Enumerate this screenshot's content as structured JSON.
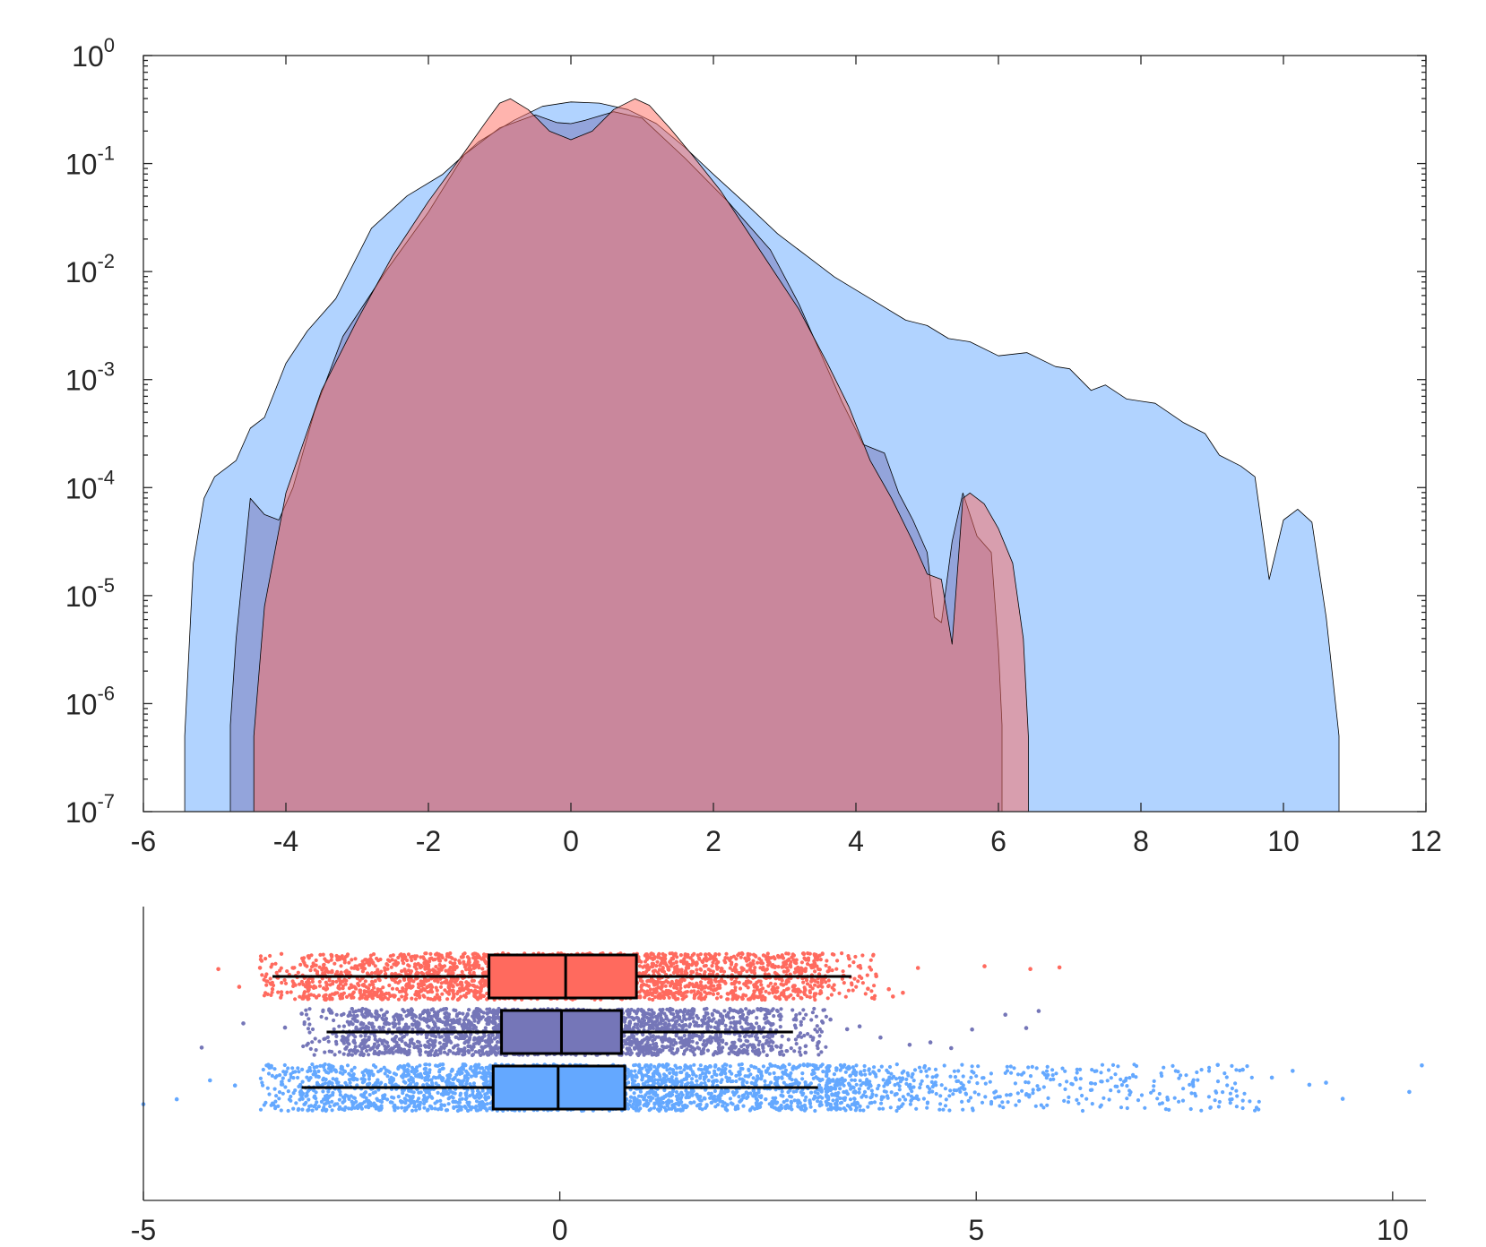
{
  "chart_data": [
    {
      "type": "area",
      "scale_y": "log",
      "xlim": [
        -6,
        12
      ],
      "ylim_exponents": [
        -7,
        0
      ],
      "x_ticks": [
        "-6",
        "-4",
        "-2",
        "0",
        "2",
        "4",
        "6",
        "8",
        "10",
        "12"
      ],
      "y_tick_base": "10",
      "y_tick_exponents": [
        "-7",
        "-6",
        "-5",
        "-4",
        "-3",
        "-2",
        "-1",
        "0"
      ],
      "grid": false,
      "title": "",
      "xlabel": "",
      "ylabel": "",
      "series": [
        {
          "color": "#64a8ff",
          "points": [
            [
              -5.42,
              -6.3
            ],
            [
              -5.3,
              -4.7
            ],
            [
              -5.15,
              -4.1
            ],
            [
              -5.0,
              -3.9
            ],
            [
              -4.7,
              -3.75
            ],
            [
              -4.5,
              -3.45
            ],
            [
              -4.3,
              -3.35
            ],
            [
              -4.0,
              -2.85
            ],
            [
              -3.7,
              -2.55
            ],
            [
              -3.3,
              -2.25
            ],
            [
              -2.8,
              -1.6
            ],
            [
              -2.3,
              -1.3
            ],
            [
              -1.8,
              -1.1
            ],
            [
              -1.3,
              -0.8
            ],
            [
              -0.8,
              -0.6
            ],
            [
              -0.4,
              -0.47
            ],
            [
              0.0,
              -0.43
            ],
            [
              0.4,
              -0.44
            ],
            [
              0.8,
              -0.5
            ],
            [
              1.2,
              -0.63
            ],
            [
              1.6,
              -0.85
            ],
            [
              2.0,
              -1.1
            ],
            [
              2.5,
              -1.4
            ],
            [
              2.9,
              -1.65
            ],
            [
              3.3,
              -1.85
            ],
            [
              3.7,
              -2.05
            ],
            [
              4.2,
              -2.25
            ],
            [
              4.7,
              -2.45
            ],
            [
              5.0,
              -2.5
            ],
            [
              5.3,
              -2.62
            ],
            [
              5.6,
              -2.65
            ],
            [
              6.0,
              -2.78
            ],
            [
              6.4,
              -2.75
            ],
            [
              6.8,
              -2.88
            ],
            [
              7.0,
              -2.9
            ],
            [
              7.3,
              -3.1
            ],
            [
              7.5,
              -3.05
            ],
            [
              7.8,
              -3.18
            ],
            [
              8.2,
              -3.22
            ],
            [
              8.6,
              -3.4
            ],
            [
              8.9,
              -3.5
            ],
            [
              9.1,
              -3.7
            ],
            [
              9.4,
              -3.8
            ],
            [
              9.6,
              -3.9
            ],
            [
              9.8,
              -4.85
            ],
            [
              10.0,
              -4.3
            ],
            [
              10.2,
              -4.2
            ],
            [
              10.4,
              -4.32
            ],
            [
              10.6,
              -5.2
            ],
            [
              10.78,
              -6.3
            ]
          ]
        },
        {
          "color": "#7576b8",
          "points": [
            [
              -4.78,
              -6.2
            ],
            [
              -4.7,
              -5.4
            ],
            [
              -4.5,
              -4.1
            ],
            [
              -4.3,
              -4.25
            ],
            [
              -4.1,
              -4.3
            ],
            [
              -3.9,
              -4.0
            ],
            [
              -3.6,
              -3.3
            ],
            [
              -3.2,
              -2.6
            ],
            [
              -2.6,
              -2.0
            ],
            [
              -2.0,
              -1.45
            ],
            [
              -1.5,
              -0.92
            ],
            [
              -1.0,
              -0.67
            ],
            [
              -0.5,
              -0.55
            ],
            [
              -0.2,
              -0.62
            ],
            [
              0.0,
              -0.63
            ],
            [
              0.2,
              -0.6
            ],
            [
              0.6,
              -0.52
            ],
            [
              1.0,
              -0.58
            ],
            [
              1.6,
              -0.95
            ],
            [
              2.2,
              -1.35
            ],
            [
              2.8,
              -1.8
            ],
            [
              3.2,
              -2.3
            ],
            [
              3.5,
              -2.75
            ],
            [
              3.8,
              -3.2
            ],
            [
              4.1,
              -3.6
            ],
            [
              4.4,
              -3.68
            ],
            [
              4.6,
              -4.05
            ],
            [
              4.8,
              -4.3
            ],
            [
              5.0,
              -4.6
            ],
            [
              5.1,
              -5.2
            ],
            [
              5.2,
              -5.25
            ],
            [
              5.35,
              -4.5
            ],
            [
              5.5,
              -4.05
            ],
            [
              5.7,
              -4.45
            ],
            [
              5.9,
              -4.6
            ],
            [
              6.0,
              -5.5
            ],
            [
              6.05,
              -6.2
            ]
          ]
        },
        {
          "color": "#ff6a5e",
          "points": [
            [
              -4.45,
              -6.3
            ],
            [
              -4.3,
              -5.1
            ],
            [
              -4.0,
              -4.05
            ],
            [
              -3.5,
              -3.1
            ],
            [
              -3.0,
              -2.45
            ],
            [
              -2.5,
              -1.85
            ],
            [
              -2.0,
              -1.35
            ],
            [
              -1.5,
              -0.9
            ],
            [
              -1.2,
              -0.62
            ],
            [
              -1.0,
              -0.44
            ],
            [
              -0.85,
              -0.4
            ],
            [
              -0.6,
              -0.5
            ],
            [
              -0.3,
              -0.7
            ],
            [
              0.0,
              -0.78
            ],
            [
              0.3,
              -0.7
            ],
            [
              0.6,
              -0.5
            ],
            [
              0.9,
              -0.4
            ],
            [
              1.1,
              -0.46
            ],
            [
              1.4,
              -0.68
            ],
            [
              1.7,
              -0.92
            ],
            [
              2.1,
              -1.25
            ],
            [
              2.6,
              -1.75
            ],
            [
              3.2,
              -2.35
            ],
            [
              3.6,
              -2.85
            ],
            [
              3.9,
              -3.25
            ],
            [
              4.2,
              -3.75
            ],
            [
              4.5,
              -4.1
            ],
            [
              4.8,
              -4.5
            ],
            [
              5.0,
              -4.8
            ],
            [
              5.2,
              -4.85
            ],
            [
              5.35,
              -5.45
            ],
            [
              5.5,
              -4.1
            ],
            [
              5.6,
              -4.05
            ],
            [
              5.8,
              -4.15
            ],
            [
              6.0,
              -4.38
            ],
            [
              6.2,
              -4.7
            ],
            [
              6.35,
              -5.4
            ],
            [
              6.42,
              -6.3
            ]
          ]
        }
      ]
    },
    {
      "type": "scatter",
      "subtype": "boxplot-with-jitter",
      "xlim": [
        -5,
        10.4
      ],
      "x_ticks": [
        "-5",
        "0",
        "5",
        "10"
      ],
      "grid": false,
      "title": "",
      "xlabel": "",
      "ylabel": "",
      "series": [
        {
          "color": "#ff6a5e",
          "box": {
            "whisker_low": -3.45,
            "q1": -0.85,
            "median": 0.07,
            "q3": 0.92,
            "whisker_high": 3.5
          },
          "dense_range": [
            -3.1,
            3.2
          ],
          "outliers": [
            -4.1,
            -3.6,
            -3.85,
            3.6,
            3.7,
            3.8,
            3.95,
            4.0,
            4.12,
            4.3,
            5.1,
            5.65,
            6.0
          ]
        },
        {
          "color": "#7576b8",
          "box": {
            "whisker_low": -2.8,
            "q1": -0.7,
            "median": 0.02,
            "q3": 0.74,
            "whisker_high": 2.8
          },
          "dense_range": [
            -2.6,
            2.6
          ],
          "outliers": [
            -4.3,
            -3.8,
            -3.3,
            -3.1,
            2.95,
            3.1,
            3.25,
            3.45,
            3.6,
            3.85,
            4.2,
            4.45,
            4.7,
            4.95,
            5.35,
            5.6,
            5.75
          ]
        },
        {
          "color": "#64a8ff",
          "box": {
            "whisker_low": -3.1,
            "q1": -0.8,
            "median": -0.02,
            "q3": 0.78,
            "whisker_high": 3.1
          },
          "dense_range": [
            -3.1,
            3.2
          ],
          "outliers": [
            -5.0,
            -4.6,
            -4.2,
            -3.9,
            -3.5,
            7.3,
            7.6,
            7.9,
            8.2,
            8.55,
            8.8,
            9.0,
            9.2,
            9.4,
            10.2,
            10.35
          ]
        }
      ]
    }
  ]
}
